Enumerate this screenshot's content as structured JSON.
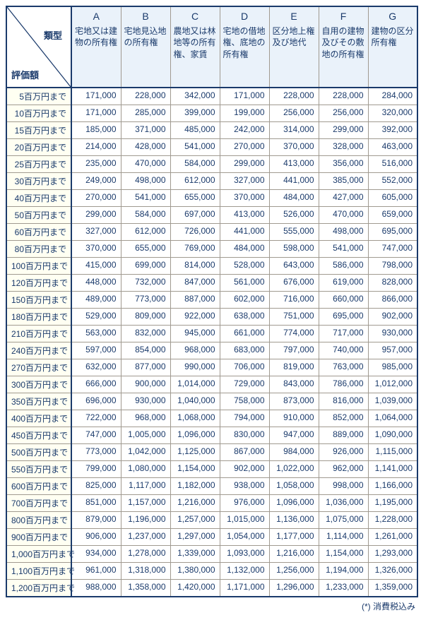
{
  "corner": {
    "top": "類型",
    "bottom": "評価額"
  },
  "columns": [
    {
      "letter": "A",
      "label": "宅地又は建物の所有権"
    },
    {
      "letter": "B",
      "label": "宅地見込地の所有権"
    },
    {
      "letter": "C",
      "label": "農地又は林地等の所有権、家賃"
    },
    {
      "letter": "D",
      "label": "宅地の借地権、底地の所有権"
    },
    {
      "letter": "E",
      "label": "区分地上権及び地代"
    },
    {
      "letter": "F",
      "label": "自用の建物及びその敷地の所有権"
    },
    {
      "letter": "G",
      "label": "建物の区分所有権"
    }
  ],
  "rows": [
    {
      "label": "5百万円まで",
      "v": [
        "171,000",
        "228,000",
        "342,000",
        "171,000",
        "228,000",
        "228,000",
        "284,000"
      ]
    },
    {
      "label": "10百万円まで",
      "v": [
        "171,000",
        "285,000",
        "399,000",
        "199,000",
        "256,000",
        "256,000",
        "320,000"
      ]
    },
    {
      "label": "15百万円まで",
      "v": [
        "185,000",
        "371,000",
        "485,000",
        "242,000",
        "314,000",
        "299,000",
        "392,000"
      ]
    },
    {
      "label": "20百万円まで",
      "v": [
        "214,000",
        "428,000",
        "541,000",
        "270,000",
        "370,000",
        "328,000",
        "463,000"
      ]
    },
    {
      "label": "25百万円まで",
      "v": [
        "235,000",
        "470,000",
        "584,000",
        "299,000",
        "413,000",
        "356,000",
        "516,000"
      ]
    },
    {
      "label": "30百万円まで",
      "v": [
        "249,000",
        "498,000",
        "612,000",
        "327,000",
        "441,000",
        "385,000",
        "552,000"
      ]
    },
    {
      "label": "40百万円まで",
      "v": [
        "270,000",
        "541,000",
        "655,000",
        "370,000",
        "484,000",
        "427,000",
        "605,000"
      ]
    },
    {
      "label": "50百万円まで",
      "v": [
        "299,000",
        "584,000",
        "697,000",
        "413,000",
        "526,000",
        "470,000",
        "659,000"
      ]
    },
    {
      "label": "60百万円まで",
      "v": [
        "327,000",
        "612,000",
        "726,000",
        "441,000",
        "555,000",
        "498,000",
        "695,000"
      ]
    },
    {
      "label": "80百万円まで",
      "v": [
        "370,000",
        "655,000",
        "769,000",
        "484,000",
        "598,000",
        "541,000",
        "747,000"
      ]
    },
    {
      "label": "100百万円まで",
      "v": [
        "415,000",
        "699,000",
        "814,000",
        "528,000",
        "643,000",
        "586,000",
        "798,000"
      ]
    },
    {
      "label": "120百万円まで",
      "v": [
        "448,000",
        "732,000",
        "847,000",
        "561,000",
        "676,000",
        "619,000",
        "828,000"
      ]
    },
    {
      "label": "150百万円まで",
      "v": [
        "489,000",
        "773,000",
        "887,000",
        "602,000",
        "716,000",
        "660,000",
        "866,000"
      ]
    },
    {
      "label": "180百万円まで",
      "v": [
        "529,000",
        "809,000",
        "922,000",
        "638,000",
        "751,000",
        "695,000",
        "902,000"
      ]
    },
    {
      "label": "210百万円まで",
      "v": [
        "563,000",
        "832,000",
        "945,000",
        "661,000",
        "774,000",
        "717,000",
        "930,000"
      ]
    },
    {
      "label": "240百万円まで",
      "v": [
        "597,000",
        "854,000",
        "968,000",
        "683,000",
        "797,000",
        "740,000",
        "957,000"
      ]
    },
    {
      "label": "270百万円まで",
      "v": [
        "632,000",
        "877,000",
        "990,000",
        "706,000",
        "819,000",
        "763,000",
        "985,000"
      ]
    },
    {
      "label": "300百万円まで",
      "v": [
        "666,000",
        "900,000",
        "1,014,000",
        "729,000",
        "843,000",
        "786,000",
        "1,012,000"
      ]
    },
    {
      "label": "350百万円まで",
      "v": [
        "696,000",
        "930,000",
        "1,040,000",
        "758,000",
        "873,000",
        "816,000",
        "1,039,000"
      ]
    },
    {
      "label": "400百万円まで",
      "v": [
        "722,000",
        "968,000",
        "1,068,000",
        "794,000",
        "910,000",
        "852,000",
        "1,064,000"
      ]
    },
    {
      "label": "450百万円まで",
      "v": [
        "747,000",
        "1,005,000",
        "1,096,000",
        "830,000",
        "947,000",
        "889,000",
        "1,090,000"
      ]
    },
    {
      "label": "500百万円まで",
      "v": [
        "773,000",
        "1,042,000",
        "1,125,000",
        "867,000",
        "984,000",
        "926,000",
        "1,115,000"
      ]
    },
    {
      "label": "550百万円まで",
      "v": [
        "799,000",
        "1,080,000",
        "1,154,000",
        "902,000",
        "1,022,000",
        "962,000",
        "1,141,000"
      ]
    },
    {
      "label": "600百万円まで",
      "v": [
        "825,000",
        "1,117,000",
        "1,182,000",
        "938,000",
        "1,058,000",
        "998,000",
        "1,166,000"
      ]
    },
    {
      "label": "700百万円まで",
      "v": [
        "851,000",
        "1,157,000",
        "1,216,000",
        "976,000",
        "1,096,000",
        "1,036,000",
        "1,195,000"
      ]
    },
    {
      "label": "800百万円まで",
      "v": [
        "879,000",
        "1,196,000",
        "1,257,000",
        "1,015,000",
        "1,136,000",
        "1,075,000",
        "1,228,000"
      ]
    },
    {
      "label": "900百万円まで",
      "v": [
        "906,000",
        "1,237,000",
        "1,297,000",
        "1,054,000",
        "1,177,000",
        "1,114,000",
        "1,261,000"
      ]
    },
    {
      "label": "1,000百万円まで",
      "v": [
        "934,000",
        "1,278,000",
        "1,339,000",
        "1,093,000",
        "1,216,000",
        "1,154,000",
        "1,293,000"
      ]
    },
    {
      "label": "1,100百万円まで",
      "v": [
        "961,000",
        "1,318,000",
        "1,380,000",
        "1,132,000",
        "1,256,000",
        "1,194,000",
        "1,326,000"
      ]
    },
    {
      "label": "1,200百万円まで",
      "v": [
        "988,000",
        "1,358,000",
        "1,420,000",
        "1,171,000",
        "1,296,000",
        "1,233,000",
        "1,359,000"
      ]
    }
  ],
  "footnote": "(*) 消費税込み",
  "style": {
    "text_color": "#1a3a6b",
    "border_color_outer": "#1a3a6b",
    "border_color_inner": "#a09a90",
    "header_bg": "#eaf2fa",
    "rowhead_bg": "#fffff2",
    "cell_bg": "#ffffff",
    "font_size_body": 12,
    "font_size_letter": 14
  }
}
